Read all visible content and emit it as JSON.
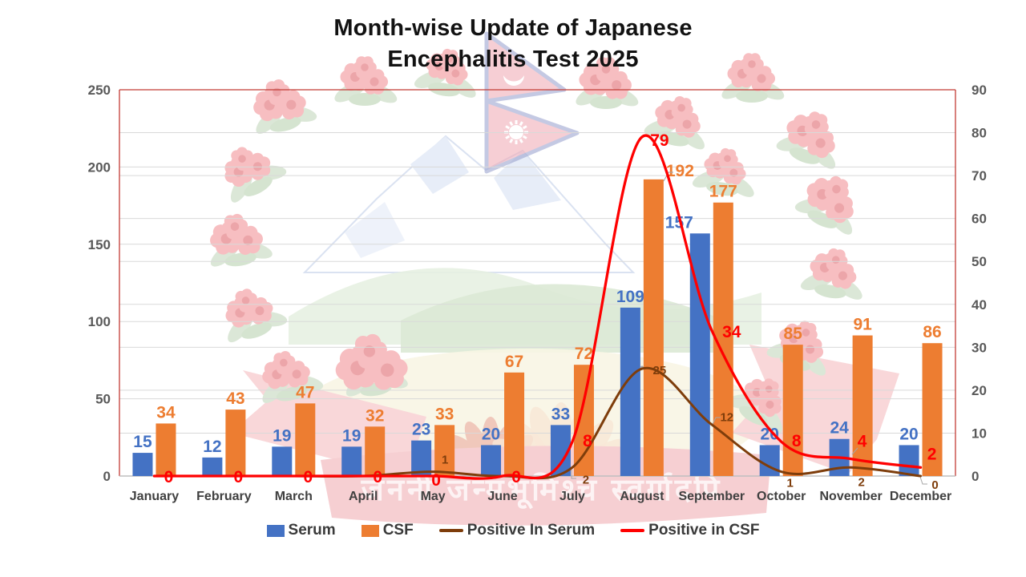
{
  "title": {
    "line1": "Month-wise Update of Japanese",
    "line2": "Encephalitis Test 2025"
  },
  "legend": {
    "items": [
      {
        "label": "Serum",
        "marker": "square",
        "color": "#4472C4"
      },
      {
        "label": "CSF",
        "marker": "square",
        "color": "#ED7D31"
      },
      {
        "label": "Positive In Serum",
        "marker": "line",
        "color": "#7E3D0B"
      },
      {
        "label": "Positive in CSF",
        "marker": "line",
        "color": "#FF0000"
      }
    ]
  },
  "watermark": {
    "description": "Emblem of Nepal: rhododendron wreath, Nepal flag, Himalaya, hills, crimson banner",
    "motto": "जननी जन्मभूमिश्च स्वर्गादपि"
  },
  "chart_data": {
    "type": "bar",
    "subtype": "combo-bar-line-dual-axis",
    "title": "Month-wise Update of Japanese Encephalitis Test 2025",
    "categories": [
      "January",
      "February",
      "March",
      "April",
      "May",
      "June",
      "July",
      "August",
      "September",
      "October",
      "November",
      "December"
    ],
    "series": [
      {
        "name": "Serum",
        "type": "bar",
        "axis": "left",
        "color": "#4472C4",
        "values": [
          15,
          12,
          19,
          19,
          23,
          20,
          33,
          109,
          157,
          20,
          24,
          20
        ],
        "labels": [
          "15",
          "12",
          "19",
          "19",
          "23",
          "20",
          "33",
          "109",
          "157",
          "20",
          "24",
          "20"
        ]
      },
      {
        "name": "CSF",
        "type": "bar",
        "axis": "left",
        "color": "#ED7D31",
        "values": [
          34,
          43,
          47,
          32,
          33,
          67,
          72,
          192,
          177,
          85,
          91,
          86
        ],
        "labels": [
          "34",
          "43",
          "47",
          "32",
          "33",
          "67",
          "72",
          "192",
          "177",
          "85",
          "91",
          "86"
        ]
      },
      {
        "name": "Positive In Serum",
        "type": "line",
        "axis": "right",
        "color": "#7E3D0B",
        "values": [
          0,
          0,
          0,
          0,
          1,
          0,
          2,
          25,
          12,
          1,
          2,
          0
        ],
        "labels": [
          "",
          "",
          "",
          "",
          "1",
          "",
          "2",
          "25",
          "12",
          "1",
          "2",
          "0"
        ]
      },
      {
        "name": "Positive in CSF",
        "type": "line",
        "axis": "right",
        "color": "#FF0000",
        "values": [
          0,
          0,
          0,
          0,
          0,
          0,
          8,
          79,
          34,
          8,
          4,
          2
        ],
        "labels": [
          "0",
          "0",
          "0",
          "0",
          "0",
          "0",
          "8",
          "79",
          "34",
          "8",
          "4",
          "2"
        ]
      }
    ],
    "left_axis": {
      "min": 0,
      "max": 250,
      "ticks": [
        0,
        50,
        100,
        150,
        200,
        250
      ]
    },
    "right_axis": {
      "min": 0,
      "max": 90,
      "ticks": [
        0,
        10,
        20,
        30,
        40,
        50,
        60,
        70,
        80,
        90
      ]
    },
    "gridlines": "horizontal, both axes, light gray",
    "plot_border_color": "#C23B35",
    "legend_position": "bottom",
    "lines_smoothed": true
  }
}
